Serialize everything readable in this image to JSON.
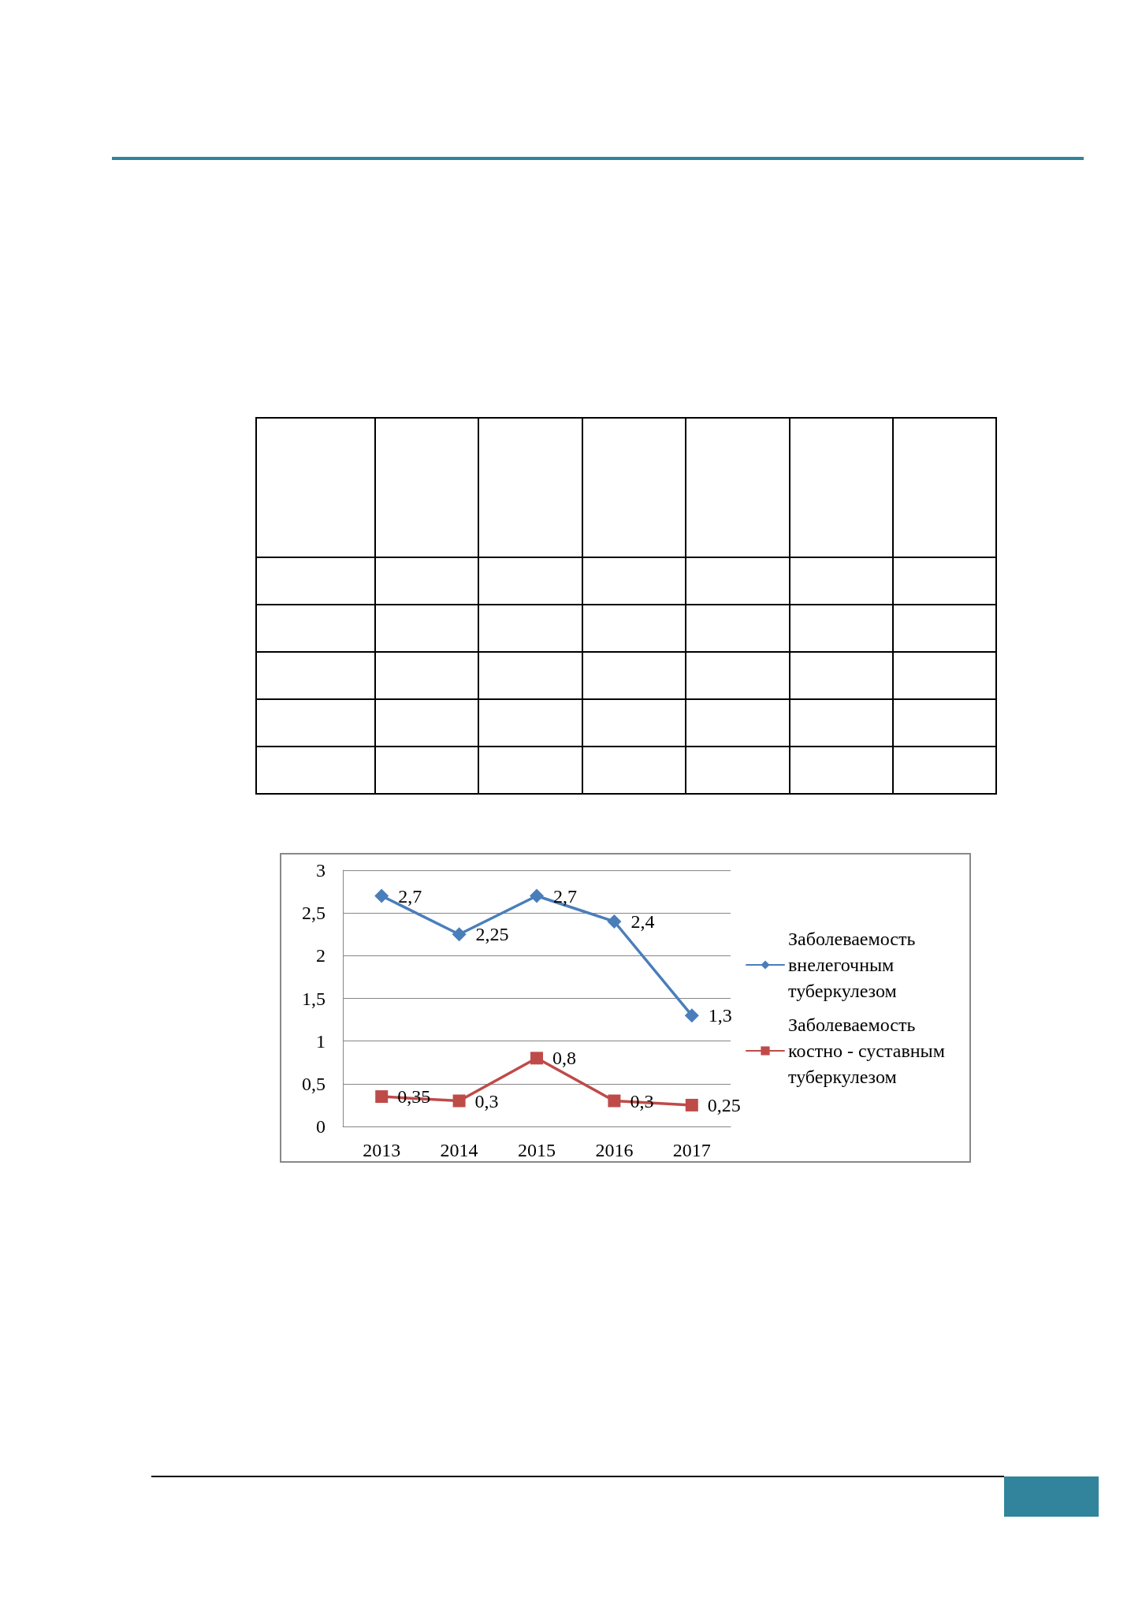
{
  "chart_data": {
    "type": "line",
    "categories": [
      "2013",
      "2014",
      "2015",
      "2016",
      "2017"
    ],
    "series": [
      {
        "name": "Заболеваемость внелегочным туберкулезом",
        "color": "#4a7ebb",
        "marker": "diamond",
        "values": [
          2.7,
          2.25,
          2.7,
          2.4,
          1.3
        ],
        "value_labels": [
          "2,7",
          "2,25",
          "2,7",
          "2,4",
          "1,3"
        ]
      },
      {
        "name": "Заболеваемость костно - суставным туберкулезом",
        "color": "#be4b48",
        "marker": "square",
        "values": [
          0.35,
          0.3,
          0.8,
          0.3,
          0.25
        ],
        "value_labels": [
          "0,35",
          "0,3",
          "0,8",
          "0,3",
          "0,25"
        ]
      }
    ],
    "ylim": [
      0,
      3
    ],
    "yticks": [
      0,
      {
        "value": 0.5,
        "label": "0,5"
      },
      1,
      {
        "value": 1.5,
        "label": "1,5"
      },
      2,
      {
        "value": 2.5,
        "label": "2,5"
      },
      3
    ],
    "grid": "y",
    "legend": "right",
    "line_style": "solid"
  }
}
